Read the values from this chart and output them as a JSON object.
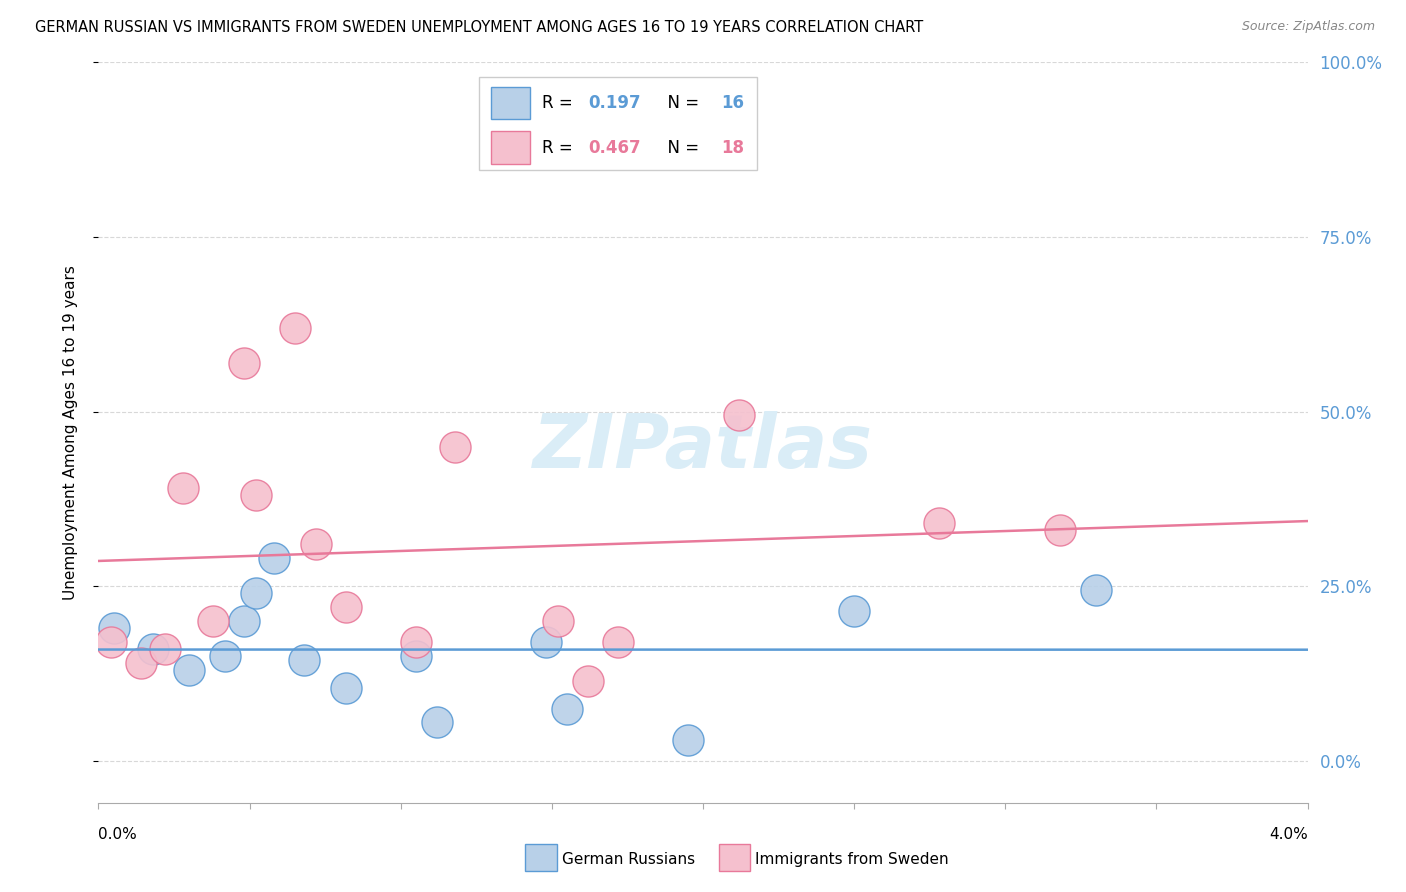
{
  "title": "GERMAN RUSSIAN VS IMMIGRANTS FROM SWEDEN UNEMPLOYMENT AMONG AGES 16 TO 19 YEARS CORRELATION CHART",
  "source": "Source: ZipAtlas.com",
  "ylabel": "Unemployment Among Ages 16 to 19 years",
  "xmin": 0.0,
  "xmax": 4.0,
  "ymin": -6.0,
  "ymax": 100.0,
  "r_blue": "0.197",
  "n_blue": "16",
  "r_pink": "0.467",
  "n_pink": "18",
  "german_russians_x": [
    0.05,
    0.18,
    0.3,
    0.42,
    0.48,
    0.52,
    0.58,
    0.68,
    0.82,
    1.05,
    1.12,
    1.48,
    1.55,
    1.95,
    2.5,
    3.3
  ],
  "german_russians_y": [
    19.0,
    16.0,
    13.0,
    15.0,
    20.0,
    24.0,
    29.0,
    14.5,
    10.5,
    15.0,
    5.5,
    17.0,
    7.5,
    3.0,
    21.5,
    24.5
  ],
  "immigrants_sweden_x": [
    0.04,
    0.14,
    0.22,
    0.28,
    0.38,
    0.48,
    0.52,
    0.65,
    0.72,
    0.82,
    1.05,
    1.18,
    1.52,
    1.62,
    1.72,
    2.12,
    2.78,
    3.18
  ],
  "immigrants_sweden_y": [
    17.0,
    14.0,
    16.0,
    39.0,
    20.0,
    57.0,
    38.0,
    62.0,
    31.0,
    22.0,
    17.0,
    45.0,
    20.0,
    11.5,
    17.0,
    49.5,
    34.0,
    33.0
  ],
  "blue_fill": "#b8d0e8",
  "blue_edge": "#5b9bd5",
  "pink_fill": "#f5c0ce",
  "pink_edge": "#e8799a",
  "grid_color": "#d8d8d8",
  "watermark_text": "ZIPatlas",
  "watermark_color": "#daedf7",
  "bubble_size": 500,
  "yticks": [
    0.0,
    25.0,
    50.0,
    75.0,
    100.0
  ],
  "ytick_labels": [
    "0.0%",
    "25.0%",
    "50.0%",
    "75.0%",
    "100.0%"
  ],
  "xticks": [
    0.0,
    0.5,
    1.0,
    1.5,
    2.0,
    2.5,
    3.0,
    3.5,
    4.0
  ]
}
